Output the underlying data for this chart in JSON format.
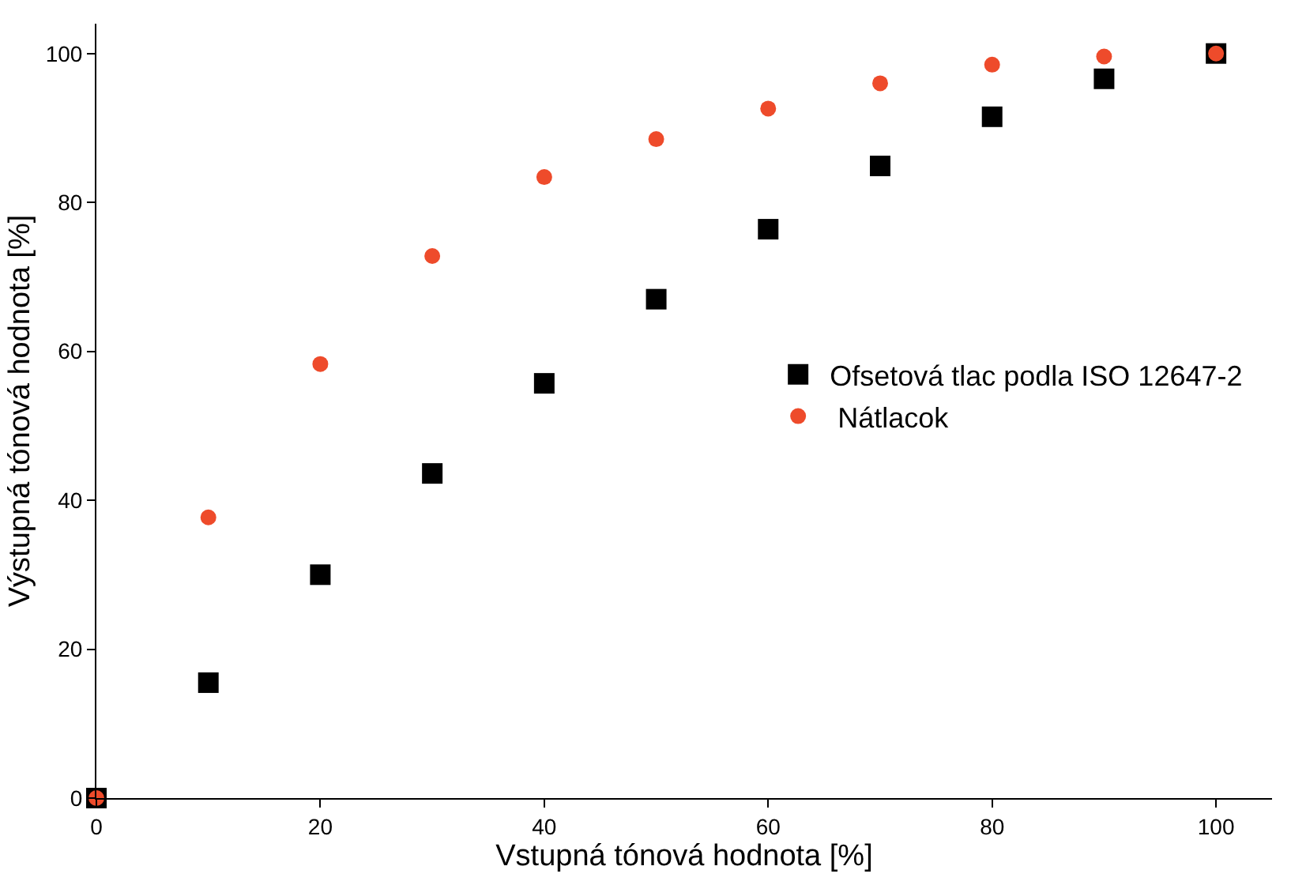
{
  "chart_data": {
    "type": "scatter",
    "xlabel": "Vstupná tónová hodnota [%]",
    "ylabel": "Výstupná tónová hodnota [%]",
    "x": [
      0,
      10,
      20,
      30,
      40,
      50,
      60,
      70,
      80,
      90,
      100
    ],
    "series": [
      {
        "name": "Ofsetová tlac podla ISO 12647-2",
        "color": "#000000",
        "marker": "square",
        "values": [
          0,
          15.5,
          30,
          43.6,
          55.7,
          67,
          76.4,
          84.9,
          91.5,
          96.6,
          100
        ]
      },
      {
        "name": " Nátlacok",
        "color": "#ee4b2b",
        "marker": "circle",
        "values": [
          0,
          37.7,
          58.3,
          72.8,
          83.4,
          88.5,
          92.6,
          96,
          98.5,
          99.6,
          100
        ]
      }
    ],
    "xlim": [
      0,
      105
    ],
    "ylim": [
      0,
      104
    ],
    "xticks": [
      0,
      20,
      40,
      60,
      80,
      100
    ],
    "yticks": [
      0,
      20,
      40,
      60,
      80,
      100
    ],
    "legend": "right"
  }
}
